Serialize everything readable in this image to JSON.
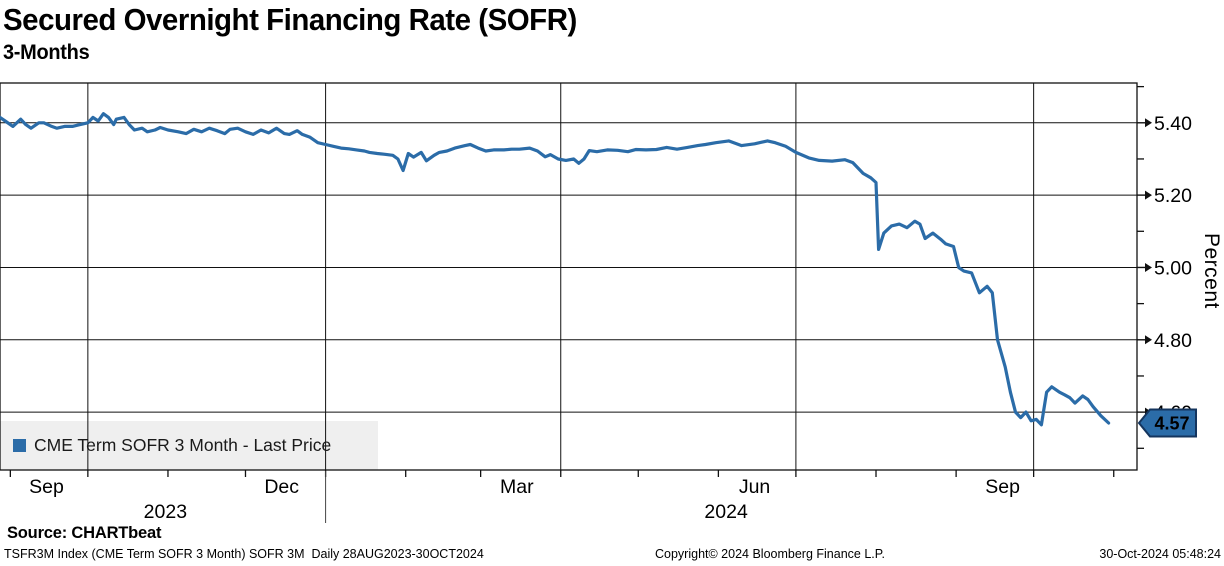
{
  "header": {
    "title": "Secured Overnight Financing Rate (SOFR)",
    "subtitle": "3-Months"
  },
  "legend": {
    "label": "CME Term SOFR 3 Month - Last Price"
  },
  "y_axis": {
    "label": "Percent",
    "major_ticks": [
      5.4,
      5.2,
      5.0,
      4.8,
      4.6
    ],
    "minor_ticks": [
      5.5,
      5.3,
      5.1,
      4.9,
      4.7,
      4.5
    ]
  },
  "x_axis": {
    "range_days": [
      0,
      440
    ],
    "epoch": "28AUG2023",
    "month_tick_days": [
      4,
      34,
      65,
      95,
      126,
      157,
      186,
      217,
      247,
      278,
      308,
      339,
      370,
      400,
      431
    ],
    "quarter_gridline_days": [
      34,
      126,
      217,
      308,
      400
    ],
    "month_labels": [
      {
        "day": 18,
        "label": "Sep"
      },
      {
        "day": 109,
        "label": "Dec"
      },
      {
        "day": 200,
        "label": "Mar"
      },
      {
        "day": 292,
        "label": "Jun"
      },
      {
        "day": 388,
        "label": "Sep"
      }
    ],
    "year_labels": [
      {
        "day": 64,
        "label": "2023"
      },
      {
        "day": 281,
        "label": "2024"
      }
    ],
    "year_divider_day": 126
  },
  "colors": {
    "line": "#2b6ca8",
    "badge_bg": "#2b6ca8",
    "badge_border": "#14355e",
    "badge_text": "#ffffff",
    "legend_bg": "rgba(238,238,238,0.92)",
    "grid": "#111111"
  },
  "chart_data": {
    "type": "line",
    "title": "Secured Overnight Financing Rate (SOFR) 3-Months",
    "ylabel": "Percent",
    "ylim": [
      4.44,
      5.51
    ],
    "period": "Daily 28AUG2023-30OCT2024",
    "last_price": "4.57",
    "last_day": 429,
    "series": [
      {
        "name": "CME Term SOFR 3 Month - Last Price",
        "color": "#2b6ca8",
        "points": [
          [
            0,
            5.415
          ],
          [
            2,
            5.405
          ],
          [
            5,
            5.39
          ],
          [
            8,
            5.41
          ],
          [
            10,
            5.395
          ],
          [
            12,
            5.385
          ],
          [
            15,
            5.4
          ],
          [
            17,
            5.4
          ],
          [
            20,
            5.39
          ],
          [
            22,
            5.385
          ],
          [
            25,
            5.39
          ],
          [
            28,
            5.39
          ],
          [
            31,
            5.395
          ],
          [
            34,
            5.4
          ],
          [
            36,
            5.415
          ],
          [
            38,
            5.405
          ],
          [
            40,
            5.425
          ],
          [
            42,
            5.415
          ],
          [
            44,
            5.395
          ],
          [
            45,
            5.41
          ],
          [
            48,
            5.415
          ],
          [
            50,
            5.395
          ],
          [
            52,
            5.38
          ],
          [
            55,
            5.385
          ],
          [
            57,
            5.375
          ],
          [
            60,
            5.38
          ],
          [
            62,
            5.387
          ],
          [
            65,
            5.38
          ],
          [
            69,
            5.375
          ],
          [
            72,
            5.37
          ],
          [
            75,
            5.382
          ],
          [
            78,
            5.375
          ],
          [
            81,
            5.385
          ],
          [
            84,
            5.378
          ],
          [
            87,
            5.37
          ],
          [
            89,
            5.382
          ],
          [
            92,
            5.385
          ],
          [
            95,
            5.375
          ],
          [
            98,
            5.368
          ],
          [
            101,
            5.38
          ],
          [
            104,
            5.372
          ],
          [
            107,
            5.385
          ],
          [
            110,
            5.37
          ],
          [
            112,
            5.368
          ],
          [
            115,
            5.378
          ],
          [
            117,
            5.368
          ],
          [
            120,
            5.36
          ],
          [
            123,
            5.345
          ],
          [
            126,
            5.34
          ],
          [
            129,
            5.335
          ],
          [
            132,
            5.33
          ],
          [
            135,
            5.328
          ],
          [
            138,
            5.325
          ],
          [
            141,
            5.322
          ],
          [
            143,
            5.318
          ],
          [
            146,
            5.315
          ],
          [
            149,
            5.313
          ],
          [
            152,
            5.31
          ],
          [
            154,
            5.3
          ],
          [
            156,
            5.268
          ],
          [
            158,
            5.315
          ],
          [
            160,
            5.305
          ],
          [
            163,
            5.318
          ],
          [
            165,
            5.295
          ],
          [
            168,
            5.31
          ],
          [
            170,
            5.318
          ],
          [
            173,
            5.322
          ],
          [
            176,
            5.33
          ],
          [
            180,
            5.337
          ],
          [
            182,
            5.34
          ],
          [
            185,
            5.33
          ],
          [
            188,
            5.322
          ],
          [
            191,
            5.325
          ],
          [
            195,
            5.325
          ],
          [
            198,
            5.327
          ],
          [
            201,
            5.327
          ],
          [
            205,
            5.33
          ],
          [
            208,
            5.322
          ],
          [
            211,
            5.306
          ],
          [
            213,
            5.312
          ],
          [
            216,
            5.3
          ],
          [
            219,
            5.296
          ],
          [
            222,
            5.3
          ],
          [
            224,
            5.288
          ],
          [
            226,
            5.3
          ],
          [
            228,
            5.323
          ],
          [
            231,
            5.32
          ],
          [
            235,
            5.325
          ],
          [
            239,
            5.324
          ],
          [
            243,
            5.32
          ],
          [
            246,
            5.326
          ],
          [
            250,
            5.325
          ],
          [
            254,
            5.326
          ],
          [
            258,
            5.332
          ],
          [
            262,
            5.327
          ],
          [
            266,
            5.332
          ],
          [
            270,
            5.337
          ],
          [
            273,
            5.34
          ],
          [
            277,
            5.345
          ],
          [
            282,
            5.35
          ],
          [
            287,
            5.337
          ],
          [
            292,
            5.342
          ],
          [
            297,
            5.35
          ],
          [
            300,
            5.345
          ],
          [
            304,
            5.335
          ],
          [
            308,
            5.318
          ],
          [
            313,
            5.303
          ],
          [
            317,
            5.296
          ],
          [
            322,
            5.294
          ],
          [
            327,
            5.298
          ],
          [
            330,
            5.29
          ],
          [
            334,
            5.26
          ],
          [
            337,
            5.248
          ],
          [
            339,
            5.235
          ],
          [
            340,
            5.05
          ],
          [
            342,
            5.095
          ],
          [
            345,
            5.115
          ],
          [
            348,
            5.12
          ],
          [
            351,
            5.11
          ],
          [
            354,
            5.128
          ],
          [
            356,
            5.12
          ],
          [
            358,
            5.08
          ],
          [
            361,
            5.095
          ],
          [
            364,
            5.078
          ],
          [
            366,
            5.065
          ],
          [
            369,
            5.058
          ],
          [
            371,
            5.0
          ],
          [
            373,
            4.99
          ],
          [
            376,
            4.985
          ],
          [
            379,
            4.93
          ],
          [
            382,
            4.948
          ],
          [
            384,
            4.93
          ],
          [
            386,
            4.8
          ],
          [
            389,
            4.725
          ],
          [
            391,
            4.655
          ],
          [
            393,
            4.6
          ],
          [
            395,
            4.585
          ],
          [
            397,
            4.6
          ],
          [
            399,
            4.576
          ],
          [
            401,
            4.58
          ],
          [
            403,
            4.565
          ],
          [
            405,
            4.655
          ],
          [
            407,
            4.67
          ],
          [
            410,
            4.655
          ],
          [
            412,
            4.648
          ],
          [
            414,
            4.64
          ],
          [
            416,
            4.625
          ],
          [
            419,
            4.645
          ],
          [
            421,
            4.635
          ],
          [
            423,
            4.615
          ],
          [
            426,
            4.59
          ],
          [
            429,
            4.57
          ]
        ]
      }
    ]
  },
  "footer": {
    "source": "Source: CHARTbeat",
    "left": "TSFR3M Index (CME Term SOFR 3 Month) SOFR 3M  Daily 28AUG2023-30OCT2024",
    "center": "Copyright© 2024 Bloomberg Finance L.P.",
    "right": "30-Oct-2024 05:48:24"
  }
}
